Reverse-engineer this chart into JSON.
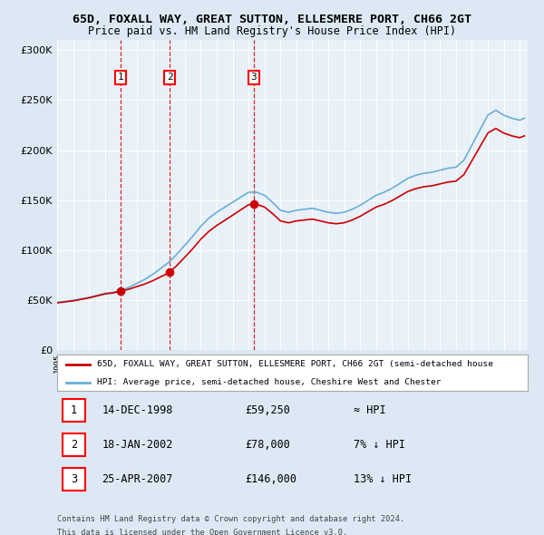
{
  "title1": "65D, FOXALL WAY, GREAT SUTTON, ELLESMERE PORT, CH66 2GT",
  "title2": "Price paid vs. HM Land Registry's House Price Index (HPI)",
  "legend_line1": "65D, FOXALL WAY, GREAT SUTTON, ELLESMERE PORT, CH66 2GT (semi-detached house",
  "legend_line2": "HPI: Average price, semi-detached house, Cheshire West and Chester",
  "footer1": "Contains HM Land Registry data © Crown copyright and database right 2024.",
  "footer2": "This data is licensed under the Open Government Licence v3.0.",
  "sales": [
    {
      "date": 1998.96,
      "price": 59250,
      "label": "1"
    },
    {
      "date": 2002.05,
      "price": 78000,
      "label": "2"
    },
    {
      "date": 2007.32,
      "price": 146000,
      "label": "3"
    }
  ],
  "vline_dates": [
    1998.96,
    2002.05,
    2007.32
  ],
  "hpi_color": "#6baed6",
  "sale_color": "#cc0000",
  "vline_color": "#cc0000",
  "background_color": "#dce9f5",
  "plot_bg": "#e8f0f8",
  "table_bg": "#ffffff",
  "ylim": [
    0,
    310000
  ],
  "xlim": [
    1995.0,
    2024.5
  ],
  "years_hpi": [
    1995.0,
    1995.5,
    1996.0,
    1996.5,
    1997.0,
    1997.5,
    1998.0,
    1998.5,
    1999.0,
    1999.5,
    2000.0,
    2000.5,
    2001.0,
    2001.5,
    2002.0,
    2002.5,
    2003.0,
    2003.5,
    2004.0,
    2004.5,
    2005.0,
    2005.5,
    2006.0,
    2006.5,
    2007.0,
    2007.5,
    2008.0,
    2008.5,
    2009.0,
    2009.5,
    2010.0,
    2010.5,
    2011.0,
    2011.5,
    2012.0,
    2012.5,
    2013.0,
    2013.5,
    2014.0,
    2014.5,
    2015.0,
    2015.5,
    2016.0,
    2016.5,
    2017.0,
    2017.5,
    2018.0,
    2018.5,
    2019.0,
    2019.5,
    2020.0,
    2020.5,
    2021.0,
    2021.5,
    2022.0,
    2022.5,
    2023.0,
    2023.5,
    2024.0,
    2024.3
  ],
  "hpi_values": [
    48000,
    49000,
    50000,
    51500,
    53000,
    55000,
    57000,
    58000,
    60000,
    63000,
    67000,
    71000,
    76000,
    82000,
    88000,
    96000,
    105000,
    114000,
    124000,
    132000,
    138000,
    143000,
    148000,
    153000,
    158000,
    158000,
    155000,
    148000,
    140000,
    138000,
    140000,
    141000,
    142000,
    140000,
    138000,
    137000,
    138000,
    141000,
    145000,
    150000,
    155000,
    158000,
    162000,
    167000,
    172000,
    175000,
    177000,
    178000,
    180000,
    182000,
    183000,
    190000,
    205000,
    220000,
    235000,
    240000,
    235000,
    232000,
    230000,
    232000
  ],
  "sale_points_x": [
    1998.96,
    2002.05,
    2007.32
  ],
  "sale_points_y": [
    59250,
    78000,
    146000
  ],
  "title1_fontsize": 9.5,
  "title2_fontsize": 8.5
}
